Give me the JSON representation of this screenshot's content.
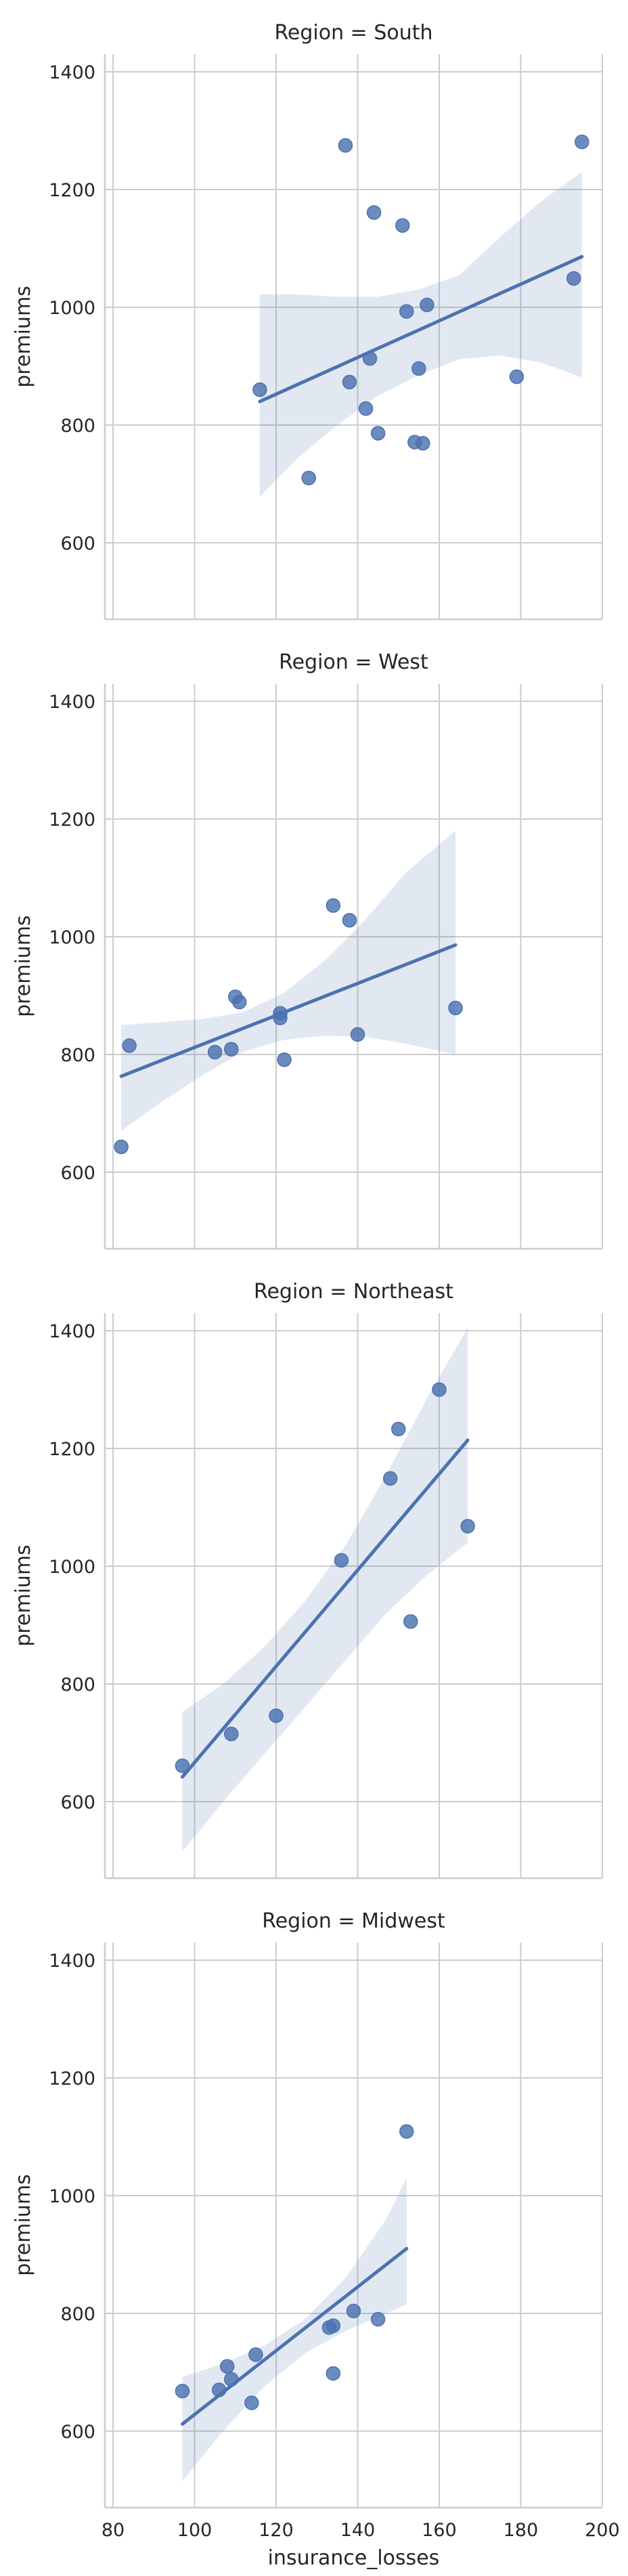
{
  "chart_data": {
    "type": "scatter",
    "layout": "faceted lmplot (regression with confidence band), 4 panels stacked vertically, shared axes",
    "xlabel": "insurance_losses",
    "ylabel": "premiums",
    "xlim": [
      78,
      200
    ],
    "ylim": [
      470,
      1430
    ],
    "x_ticks": [
      80,
      100,
      120,
      140,
      160,
      180,
      200
    ],
    "y_ticks": [
      600,
      800,
      1000,
      1200,
      1400
    ],
    "grid": true,
    "color": "#4c72b0",
    "panels": [
      {
        "title": "Region = South",
        "points": [
          {
            "x": 116,
            "y": 860
          },
          {
            "x": 128,
            "y": 710
          },
          {
            "x": 137,
            "y": 1275
          },
          {
            "x": 138,
            "y": 873
          },
          {
            "x": 142,
            "y": 828
          },
          {
            "x": 143,
            "y": 913
          },
          {
            "x": 144,
            "y": 1161
          },
          {
            "x": 145,
            "y": 786
          },
          {
            "x": 151,
            "y": 1139
          },
          {
            "x": 152,
            "y": 993
          },
          {
            "x": 154,
            "y": 771
          },
          {
            "x": 155,
            "y": 896
          },
          {
            "x": 156,
            "y": 769
          },
          {
            "x": 157,
            "y": 1004
          },
          {
            "x": 179,
            "y": 882
          },
          {
            "x": 193,
            "y": 1049
          },
          {
            "x": 195,
            "y": 1281
          }
        ],
        "fit": {
          "x": [
            116,
            195
          ],
          "y": [
            840,
            1086
          ]
        },
        "band": {
          "x": [
            116,
            125,
            135,
            145,
            155,
            165,
            175,
            185,
            195
          ],
          "upper": [
            1022,
            1022,
            1018,
            1018,
            1030,
            1055,
            1120,
            1180,
            1230
          ],
          "lower": [
            678,
            742,
            800,
            850,
            885,
            912,
            918,
            906,
            881
          ]
        }
      },
      {
        "title": "Region = West",
        "points": [
          {
            "x": 82,
            "y": 643
          },
          {
            "x": 84,
            "y": 815
          },
          {
            "x": 105,
            "y": 804
          },
          {
            "x": 109,
            "y": 809
          },
          {
            "x": 110,
            "y": 898
          },
          {
            "x": 111,
            "y": 889
          },
          {
            "x": 121,
            "y": 870
          },
          {
            "x": 121,
            "y": 862
          },
          {
            "x": 122,
            "y": 791
          },
          {
            "x": 134,
            "y": 1053
          },
          {
            "x": 138,
            "y": 1028
          },
          {
            "x": 140,
            "y": 834
          },
          {
            "x": 164,
            "y": 879
          }
        ],
        "fit": {
          "x": [
            82,
            164
          ],
          "y": [
            763,
            986
          ]
        },
        "band": {
          "x": [
            82,
            92,
            102,
            112,
            122,
            132,
            142,
            152,
            164
          ],
          "upper": [
            850,
            855,
            860,
            872,
            905,
            960,
            1030,
            1110,
            1180
          ],
          "lower": [
            670,
            720,
            765,
            805,
            825,
            832,
            830,
            818,
            800
          ]
        }
      },
      {
        "title": "Region = Northeast",
        "points": [
          {
            "x": 97,
            "y": 661
          },
          {
            "x": 109,
            "y": 715
          },
          {
            "x": 120,
            "y": 746
          },
          {
            "x": 136,
            "y": 1010
          },
          {
            "x": 148,
            "y": 1149
          },
          {
            "x": 150,
            "y": 1233
          },
          {
            "x": 153,
            "y": 906
          },
          {
            "x": 160,
            "y": 1300
          },
          {
            "x": 167,
            "y": 1068
          }
        ],
        "fit": {
          "x": [
            97,
            167
          ],
          "y": [
            642,
            1214
          ]
        },
        "band": {
          "x": [
            97,
            107,
            117,
            127,
            137,
            147,
            157,
            167
          ],
          "upper": [
            752,
            800,
            862,
            940,
            1035,
            1155,
            1285,
            1405
          ],
          "lower": [
            515,
            600,
            680,
            760,
            840,
            920,
            985,
            1040
          ]
        }
      },
      {
        "title": "Region = Midwest",
        "points": [
          {
            "x": 97,
            "y": 668
          },
          {
            "x": 106,
            "y": 670
          },
          {
            "x": 108,
            "y": 710
          },
          {
            "x": 109,
            "y": 688
          },
          {
            "x": 114,
            "y": 648
          },
          {
            "x": 115,
            "y": 730
          },
          {
            "x": 133,
            "y": 776
          },
          {
            "x": 134,
            "y": 779
          },
          {
            "x": 134,
            "y": 698
          },
          {
            "x": 139,
            "y": 804
          },
          {
            "x": 145,
            "y": 790
          },
          {
            "x": 152,
            "y": 1109
          }
        ],
        "fit": {
          "x": [
            97,
            152
          ],
          "y": [
            612,
            910
          ]
        },
        "band": {
          "x": [
            97,
            107,
            117,
            127,
            137,
            147,
            152
          ],
          "upper": [
            692,
            715,
            745,
            790,
            860,
            960,
            1030
          ],
          "lower": [
            515,
            600,
            675,
            732,
            770,
            800,
            815
          ]
        }
      }
    ]
  }
}
